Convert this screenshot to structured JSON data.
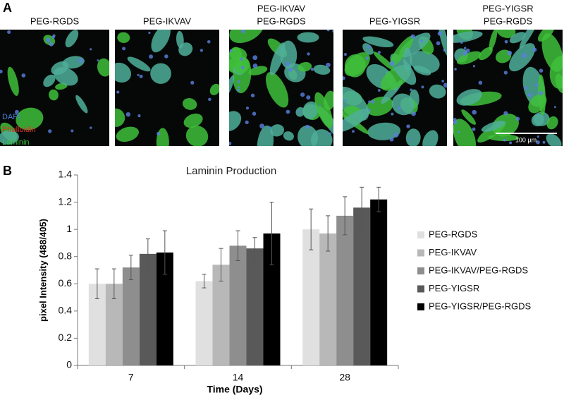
{
  "panel_a": {
    "label": "A",
    "images": [
      [
        "PEG-RGDS"
      ],
      [
        "PEG-IKVAV"
      ],
      [
        "PEG-IKVAV",
        "PEG-RGDS"
      ],
      [
        "PEG-YIGSR"
      ],
      [
        "PEG-YIGSR",
        "PEG-RGDS"
      ]
    ],
    "stain_legend": [
      {
        "text": "DAPI",
        "color": "#4a7fd8"
      },
      {
        "text": "Phalloidin",
        "color": "#e0302a"
      },
      {
        "text": "Laminin",
        "color": "#3cc43c"
      }
    ],
    "scale_bar": "100 µm"
  },
  "panel_b": {
    "label": "B"
  },
  "chart_data": {
    "type": "bar",
    "title": "Laminin Production",
    "x_label": "Time (Days)",
    "y_label": "pixel Intensity (488/405)",
    "categories": [
      "7",
      "14",
      "28"
    ],
    "series": [
      {
        "name": "PEG-RGDS",
        "color": "#e0e0e0",
        "values": [
          0.6,
          0.62,
          1.0
        ],
        "errors": [
          0.11,
          0.05,
          0.15
        ]
      },
      {
        "name": "PEG-IKVAV",
        "color": "#b8b8b8",
        "values": [
          0.6,
          0.74,
          0.97
        ],
        "errors": [
          0.11,
          0.12,
          0.13
        ]
      },
      {
        "name": "PEG-IKVAV/PEG-RGDS",
        "color": "#8e8e8e",
        "values": [
          0.72,
          0.88,
          1.1
        ],
        "errors": [
          0.09,
          0.11,
          0.14
        ]
      },
      {
        "name": "PEG-YIGSR",
        "color": "#595959",
        "values": [
          0.82,
          0.86,
          1.16
        ],
        "errors": [
          0.11,
          0.08,
          0.15
        ]
      },
      {
        "name": "PEG-YIGSR/PEG-RGDS",
        "color": "#000000",
        "values": [
          0.83,
          0.97,
          1.22
        ],
        "errors": [
          0.16,
          0.23,
          0.09
        ]
      }
    ],
    "ylim": [
      0,
      1.4
    ],
    "yticks": [
      0,
      0.2,
      0.4,
      0.6,
      0.8,
      1,
      1.2,
      1.4
    ],
    "legend": "right"
  }
}
